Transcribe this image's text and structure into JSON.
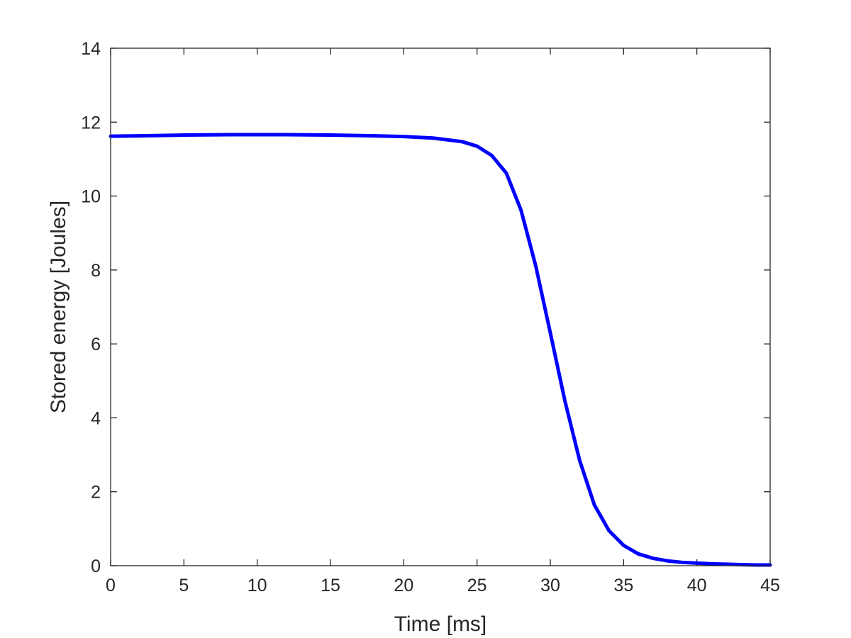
{
  "chart_data": {
    "type": "line",
    "title": "",
    "xlabel": "Time [ms]",
    "ylabel": "Stored energy [Joules]",
    "xlim": [
      0,
      45
    ],
    "ylim": [
      0,
      14
    ],
    "xticks": [
      0,
      5,
      10,
      15,
      20,
      25,
      30,
      35,
      40,
      45
    ],
    "yticks": [
      0,
      2,
      4,
      6,
      8,
      10,
      12,
      14
    ],
    "grid": false,
    "box": true,
    "series": [
      {
        "color": "#0000ff",
        "x": [
          0,
          2,
          5,
          8,
          10,
          12,
          15,
          18,
          20,
          22,
          24,
          25,
          26,
          27,
          28,
          29,
          30,
          31,
          32,
          33,
          34,
          35,
          36,
          37,
          38,
          39,
          40,
          41,
          42,
          43,
          44,
          45
        ],
        "y": [
          11.62,
          11.63,
          11.65,
          11.66,
          11.66,
          11.66,
          11.65,
          11.63,
          11.61,
          11.57,
          11.47,
          11.35,
          11.1,
          10.62,
          9.62,
          8.12,
          6.3,
          4.45,
          2.85,
          1.65,
          0.95,
          0.55,
          0.32,
          0.2,
          0.13,
          0.09,
          0.07,
          0.05,
          0.04,
          0.03,
          0.02,
          0.02
        ]
      }
    ]
  }
}
